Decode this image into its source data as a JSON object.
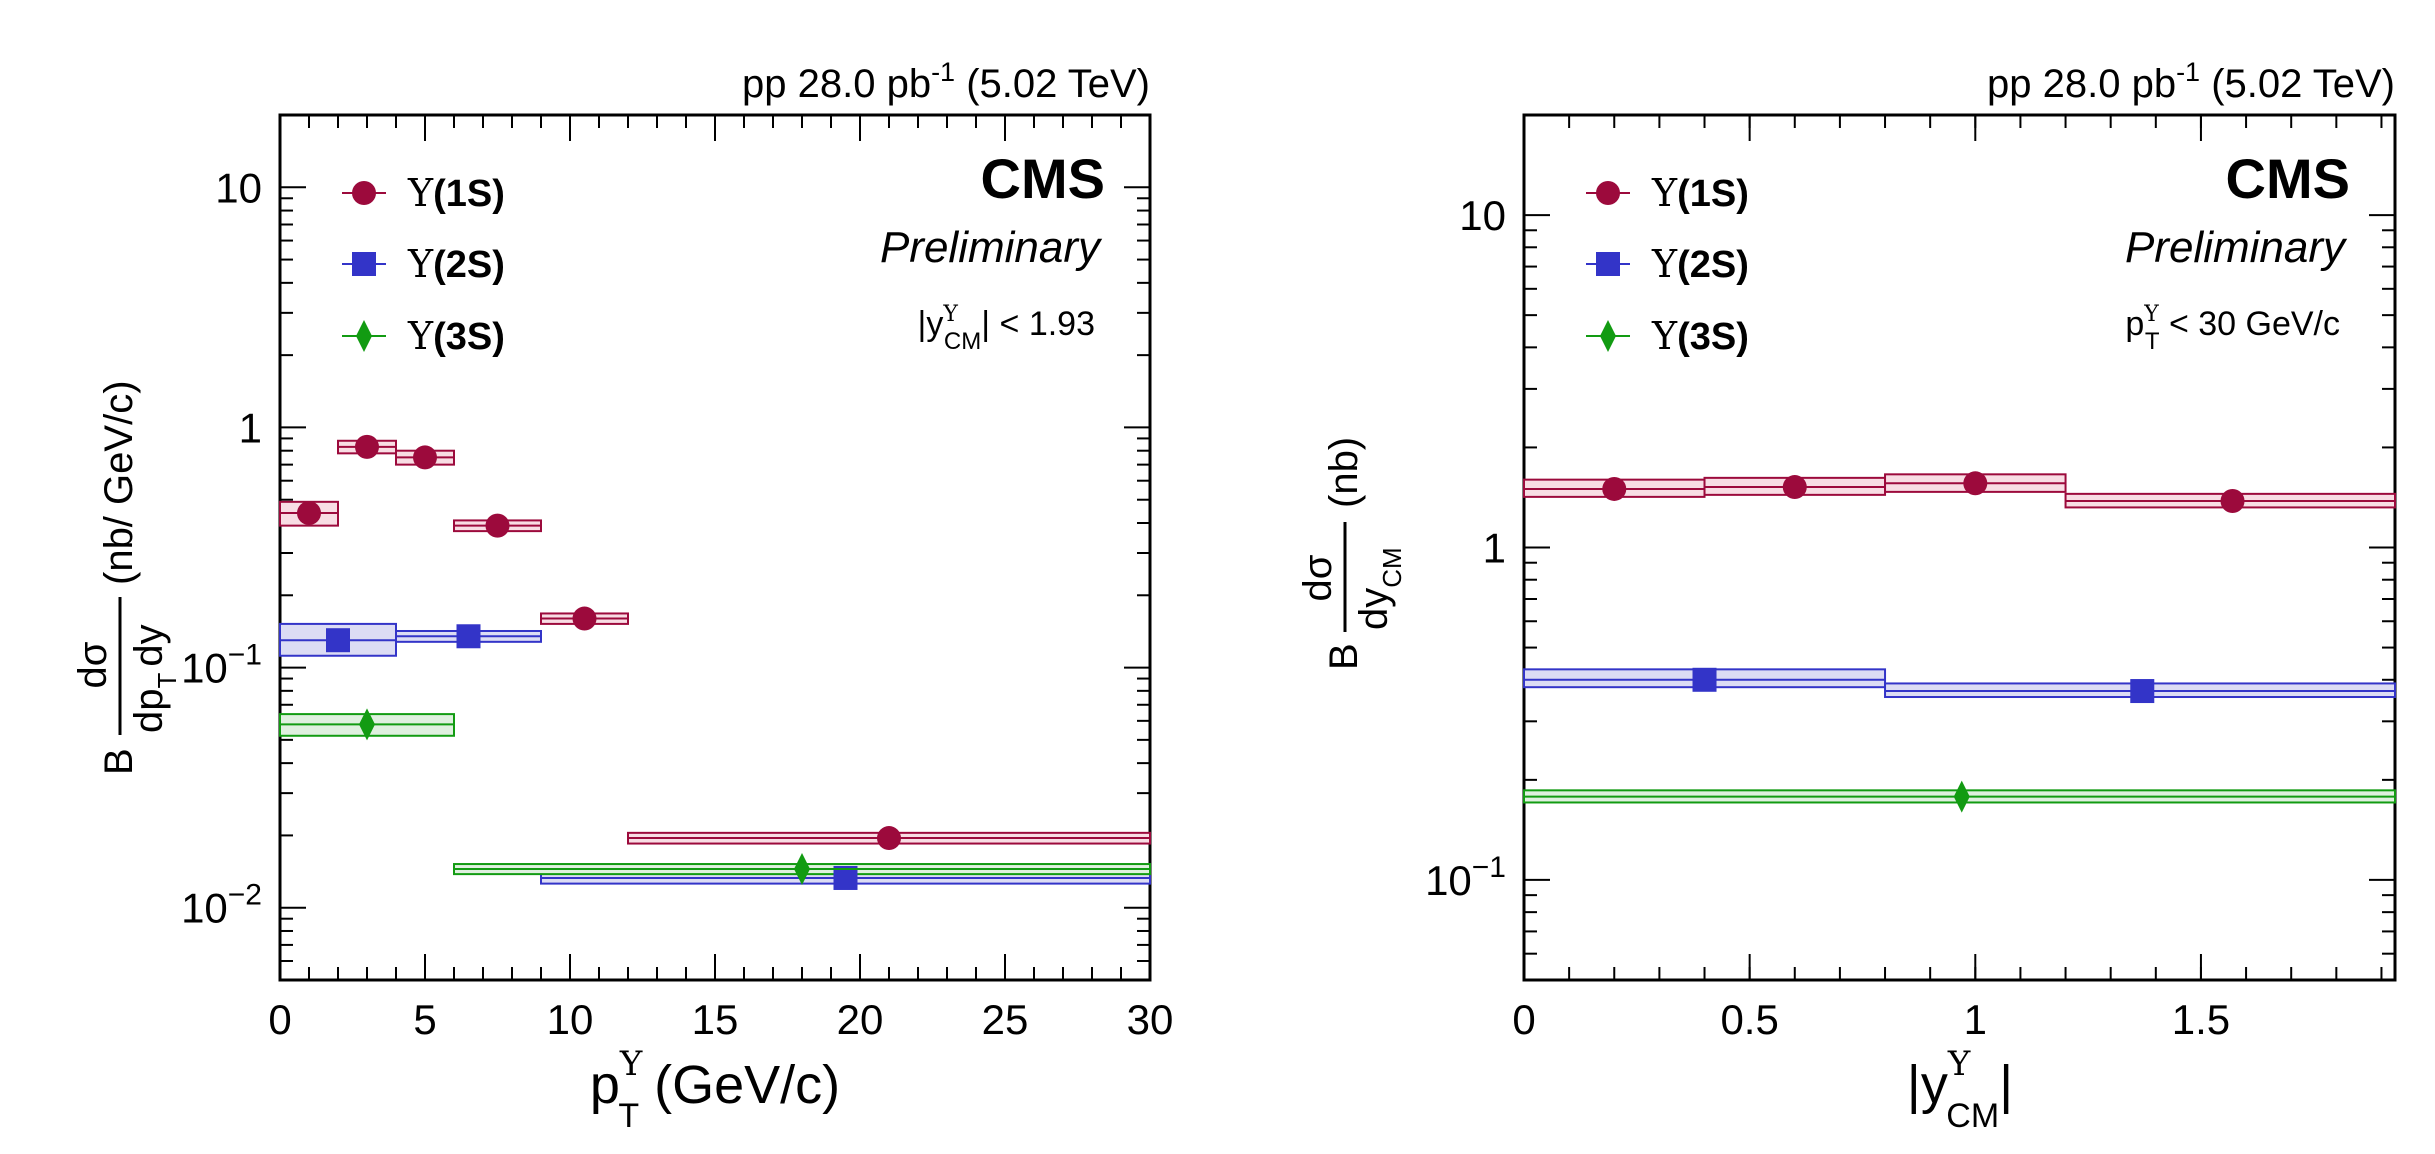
{
  "colors": {
    "s1": "#9c0a3c",
    "s1_fill": "#f8dde4",
    "s2": "#3334c8",
    "s2_fill": "#dcdcf4",
    "s3": "#129b12",
    "s3_fill": "#dff0df"
  },
  "chart_data": [
    {
      "type": "scatter",
      "yscale": "log",
      "header": "pp 28.0 pb",
      "header_sup": "-1",
      "header_tail": " (5.02 TeV)",
      "cms_label": "CMS",
      "prelim_label": "Preliminary",
      "cut_label": "|y",
      "cut_sup": "Υ",
      "cut_sub": "CM",
      "cut_tail": "| < 1.93",
      "xlabel_main": "p",
      "xlabel_sup": "Υ",
      "xlabel_sub": "T",
      "xlabel_tail": " (GeV/c)",
      "ylabel_b": "B",
      "ylabel_num": "dσ",
      "ylabel_den": "dp",
      "ylabel_den_sub": "T",
      "ylabel_den_tail": "dy",
      "ylabel_units": "(nb/ GeV/c)",
      "xlim": [
        0,
        30
      ],
      "ylim": [
        0.005,
        20
      ],
      "xticks": [
        {
          "v": 0,
          "label": "0"
        },
        {
          "v": 5,
          "label": "5"
        },
        {
          "v": 10,
          "label": "10"
        },
        {
          "v": 15,
          "label": "15"
        },
        {
          "v": 20,
          "label": "20"
        },
        {
          "v": 25,
          "label": "25"
        },
        {
          "v": 30,
          "label": "30"
        }
      ],
      "yticks": [
        {
          "v": 10,
          "label": "10"
        },
        {
          "v": 1,
          "label": "1"
        },
        {
          "v": 0.1,
          "label": "10",
          "sup": "−1"
        },
        {
          "v": 0.01,
          "label": "10",
          "sup": "−2"
        }
      ],
      "legend": [
        {
          "sym": "Υ",
          "label": "(1S)"
        },
        {
          "sym": "Υ",
          "label": "(2S)"
        },
        {
          "sym": "Υ",
          "label": "(3S)"
        }
      ],
      "series": [
        {
          "name": "Υ(1S)",
          "marker": "circle",
          "points": [
            {
              "x": 1,
              "x_lo": 0,
              "x_hi": 2,
              "y": 0.44,
              "y_lo": 0.39,
              "y_hi": 0.49
            },
            {
              "x": 3,
              "x_lo": 2,
              "x_hi": 4,
              "y": 0.83,
              "y_lo": 0.78,
              "y_hi": 0.88
            },
            {
              "x": 5,
              "x_lo": 4,
              "x_hi": 6,
              "y": 0.75,
              "y_lo": 0.7,
              "y_hi": 0.8
            },
            {
              "x": 7.5,
              "x_lo": 6,
              "x_hi": 9,
              "y": 0.39,
              "y_lo": 0.37,
              "y_hi": 0.41
            },
            {
              "x": 10.5,
              "x_lo": 9,
              "x_hi": 12,
              "y": 0.16,
              "y_lo": 0.152,
              "y_hi": 0.168
            },
            {
              "x": 21,
              "x_lo": 12,
              "x_hi": 30,
              "y": 0.0195,
              "y_lo": 0.0185,
              "y_hi": 0.0205
            }
          ]
        },
        {
          "name": "Υ(2S)",
          "marker": "square",
          "points": [
            {
              "x": 2,
              "x_lo": 0,
              "x_hi": 4,
              "y": 0.13,
              "y_lo": 0.112,
              "y_hi": 0.152
            },
            {
              "x": 6.5,
              "x_lo": 4,
              "x_hi": 9,
              "y": 0.135,
              "y_lo": 0.128,
              "y_hi": 0.142
            },
            {
              "x": 19.5,
              "x_lo": 9,
              "x_hi": 30,
              "y": 0.0133,
              "y_lo": 0.0126,
              "y_hi": 0.014
            }
          ]
        },
        {
          "name": "Υ(3S)",
          "marker": "diamond",
          "points": [
            {
              "x": 3,
              "x_lo": 0,
              "x_hi": 6,
              "y": 0.058,
              "y_lo": 0.052,
              "y_hi": 0.064
            },
            {
              "x": 18,
              "x_lo": 6,
              "x_hi": 30,
              "y": 0.0145,
              "y_lo": 0.0138,
              "y_hi": 0.0152
            }
          ]
        }
      ]
    },
    {
      "type": "scatter",
      "yscale": "log",
      "header": "pp 28.0 pb",
      "header_sup": "-1",
      "header_tail": " (5.02 TeV)",
      "cms_label": "CMS",
      "prelim_label": "Preliminary",
      "cut_label": "p",
      "cut_sup": "Υ",
      "cut_sub": "T",
      "cut_tail": " < 30 GeV/c",
      "xlabel_main": "|y",
      "xlabel_sup": "Υ",
      "xlabel_sub": "CM",
      "xlabel_tail": "|",
      "ylabel_b": "B",
      "ylabel_num": "dσ",
      "ylabel_den": "dy",
      "ylabel_den_sub": "CM",
      "ylabel_den_tail": "",
      "ylabel_units": "(nb)",
      "xlim": [
        0,
        1.93
      ],
      "ylim": [
        0.05,
        20
      ],
      "xticks": [
        {
          "v": 0,
          "label": "0"
        },
        {
          "v": 0.5,
          "label": "0.5"
        },
        {
          "v": 1,
          "label": "1"
        },
        {
          "v": 1.5,
          "label": "1.5"
        }
      ],
      "yticks": [
        {
          "v": 10,
          "label": "10"
        },
        {
          "v": 1,
          "label": "1"
        },
        {
          "v": 0.1,
          "label": "10",
          "sup": "−1"
        }
      ],
      "legend": [
        {
          "sym": "Υ",
          "label": "(1S)"
        },
        {
          "sym": "Υ",
          "label": "(2S)"
        },
        {
          "sym": "Υ",
          "label": "(3S)"
        }
      ],
      "series": [
        {
          "name": "Υ(1S)",
          "marker": "circle",
          "points": [
            {
              "x": 0.2,
              "x_lo": 0,
              "x_hi": 0.4,
              "y": 1.5,
              "y_lo": 1.42,
              "y_hi": 1.6
            },
            {
              "x": 0.6,
              "x_lo": 0.4,
              "x_hi": 0.8,
              "y": 1.52,
              "y_lo": 1.44,
              "y_hi": 1.62
            },
            {
              "x": 1.0,
              "x_lo": 0.8,
              "x_hi": 1.2,
              "y": 1.56,
              "y_lo": 1.47,
              "y_hi": 1.66
            },
            {
              "x": 1.57,
              "x_lo": 1.2,
              "x_hi": 1.93,
              "y": 1.38,
              "y_lo": 1.32,
              "y_hi": 1.45
            }
          ]
        },
        {
          "name": "Υ(2S)",
          "marker": "square",
          "points": [
            {
              "x": 0.4,
              "x_lo": 0,
              "x_hi": 0.8,
              "y": 0.4,
              "y_lo": 0.38,
              "y_hi": 0.43
            },
            {
              "x": 1.37,
              "x_lo": 0.8,
              "x_hi": 1.93,
              "y": 0.37,
              "y_lo": 0.355,
              "y_hi": 0.39
            }
          ]
        },
        {
          "name": "Υ(3S)",
          "marker": "diamond",
          "points": [
            {
              "x": 0.97,
              "x_lo": 0,
              "x_hi": 1.93,
              "y": 0.178,
              "y_lo": 0.171,
              "y_hi": 0.186
            }
          ]
        }
      ]
    }
  ]
}
